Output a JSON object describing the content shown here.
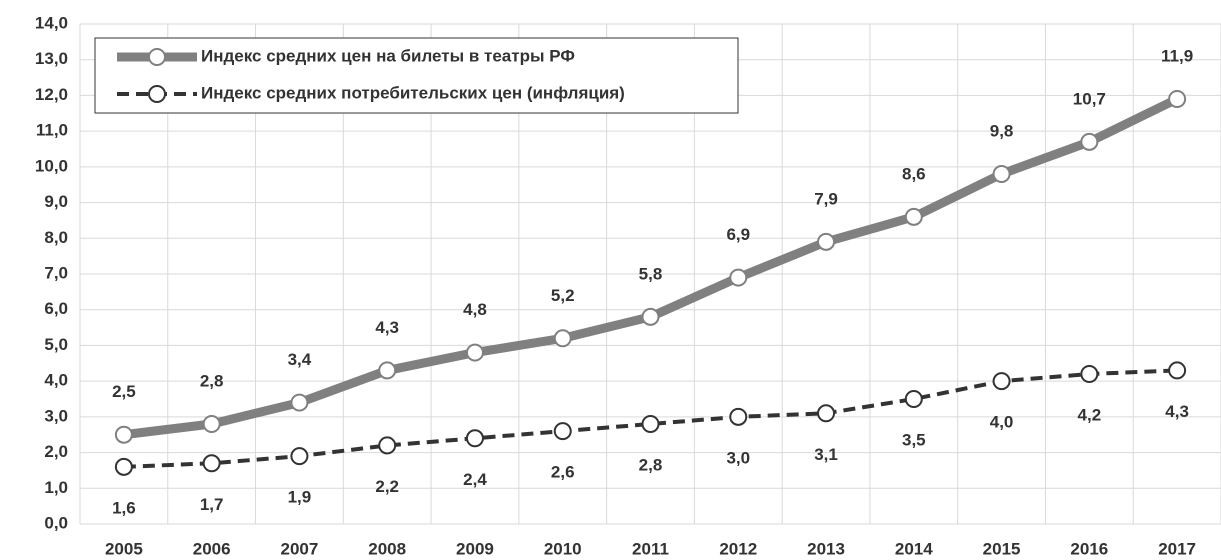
{
  "chart_data": {
    "type": "line",
    "categories": [
      "2005",
      "2006",
      "2007",
      "2008",
      "2009",
      "2010",
      "2011",
      "2012",
      "2013",
      "2014",
      "2015",
      "2016",
      "2017"
    ],
    "series": [
      {
        "name": "Индекс средних цен на билеты в театры РФ",
        "color": "#808080",
        "style": "solid",
        "values": [
          2.5,
          2.8,
          3.4,
          4.3,
          4.8,
          5.2,
          5.8,
          6.9,
          7.9,
          8.6,
          9.8,
          10.7,
          11.9
        ],
        "value_labels": [
          "2,5",
          "2,8",
          "3,4",
          "4,3",
          "4,8",
          "5,2",
          "5,8",
          "6,9",
          "7,9",
          "8,6",
          "9,8",
          "10,7",
          "11,9"
        ]
      },
      {
        "name": "Индекс средних потребительских цен (инфляция)",
        "color": "#333333",
        "style": "dashed",
        "values": [
          1.6,
          1.7,
          1.9,
          2.2,
          2.4,
          2.6,
          2.8,
          3.0,
          3.1,
          3.5,
          4.0,
          4.2,
          4.3
        ],
        "value_labels": [
          "1,6",
          "1,7",
          "1,9",
          "2,2",
          "2,4",
          "2,6",
          "2,8",
          "3,0",
          "3,1",
          "3,5",
          "4,0",
          "4,2",
          "4,3"
        ]
      }
    ],
    "ylim": [
      0,
      14
    ],
    "yticks": [
      {
        "value": 0,
        "label": "0,0"
      },
      {
        "value": 1,
        "label": "1,0"
      },
      {
        "value": 2,
        "label": "2,0"
      },
      {
        "value": 3,
        "label": "3,0"
      },
      {
        "value": 4,
        "label": "4,0"
      },
      {
        "value": 5,
        "label": "5,0"
      },
      {
        "value": 6,
        "label": "6,0"
      },
      {
        "value": 7,
        "label": "7,0"
      },
      {
        "value": 8,
        "label": "8,0"
      },
      {
        "value": 9,
        "label": "9,0"
      },
      {
        "value": 10,
        "label": "10,0"
      },
      {
        "value": 11,
        "label": "11,0"
      },
      {
        "value": 12,
        "label": "12,0"
      },
      {
        "value": 13,
        "label": "13,0"
      },
      {
        "value": 14,
        "label": "14,0"
      }
    ],
    "grid": true,
    "legend": "upper left"
  }
}
